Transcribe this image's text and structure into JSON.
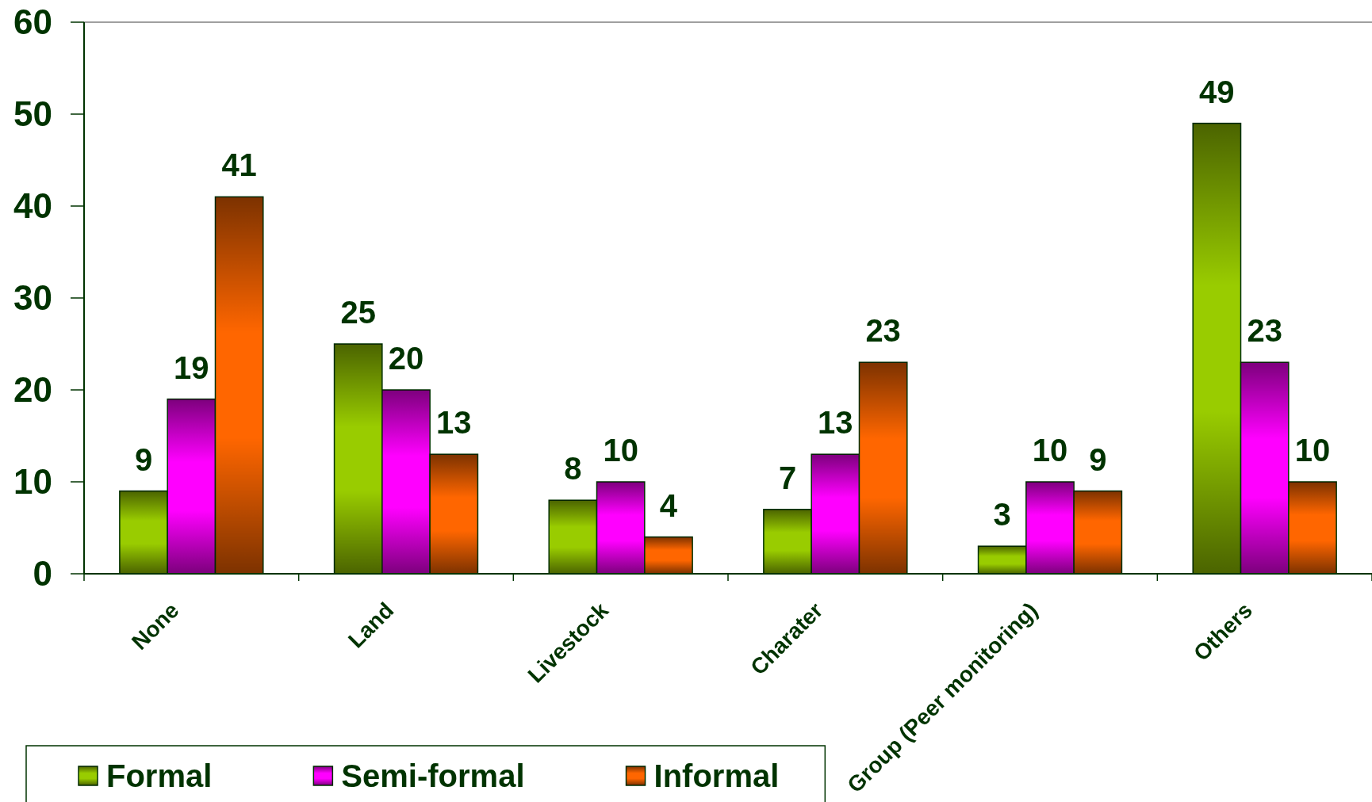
{
  "chart_data": {
    "type": "bar",
    "categories": [
      "None",
      "Land",
      "Livestock",
      "Charater",
      "Group (Peer monitoring)",
      "Others"
    ],
    "series": [
      {
        "name": "Formal",
        "color": "#99cc00",
        "values": [
          9,
          25,
          8,
          7,
          3,
          49
        ]
      },
      {
        "name": "Semi-formal",
        "color": "#ff00ff",
        "values": [
          19,
          20,
          10,
          13,
          10,
          23
        ]
      },
      {
        "name": "Informal",
        "color": "#ff6600",
        "values": [
          41,
          13,
          4,
          23,
          9,
          10
        ]
      }
    ],
    "ylim": [
      0,
      60
    ],
    "yticks": [
      0,
      10,
      20,
      30,
      40,
      50,
      60
    ],
    "data_labels": true,
    "legend": "bottom left"
  }
}
